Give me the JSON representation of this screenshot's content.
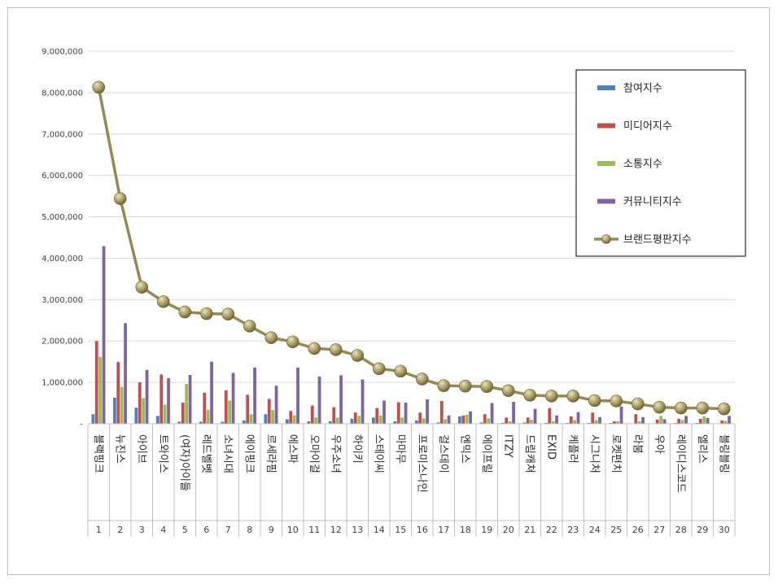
{
  "chart_data": {
    "type": "bar",
    "title": "",
    "xlabel": "",
    "ylabel": "",
    "ylim": [
      0,
      9000000
    ],
    "yticks": [
      0,
      1000000,
      2000000,
      3000000,
      4000000,
      5000000,
      6000000,
      7000000,
      8000000,
      9000000
    ],
    "ytick_labels": [
      "-",
      "1,000,000",
      "2,000,000",
      "3,000,000",
      "4,000,000",
      "5,000,000",
      "6,000,000",
      "7,000,000",
      "8,000,000",
      "9,000,000"
    ],
    "grid": true,
    "legend_position": "top-right",
    "categories": [
      "블랙핑크",
      "뉴진스",
      "아이브",
      "트와이스",
      "(여자)아이들",
      "레드벨벳",
      "소녀시대",
      "에이핑크",
      "르세라핌",
      "에스파",
      "오마이걸",
      "우주소녀",
      "하이키",
      "스테이씨",
      "마마무",
      "프로미스나인",
      "걸스데이",
      "엔믹스",
      "에이프릴",
      "ITZY",
      "드림캐쳐",
      "EXID",
      "케플러",
      "시그니처",
      "로켓펀치",
      "라붐",
      "우아",
      "레이디스코드",
      "엘리스",
      "블링블링"
    ],
    "ranks": [
      "1",
      "2",
      "3",
      "4",
      "5",
      "6",
      "7",
      "8",
      "9",
      "10",
      "11",
      "12",
      "13",
      "14",
      "15",
      "16",
      "17",
      "18",
      "19",
      "20",
      "21",
      "22",
      "23",
      "24",
      "25",
      "26",
      "27",
      "28",
      "29",
      "30"
    ],
    "series": [
      {
        "name": "참여지수",
        "kind": "bar",
        "color": "#4f81bd",
        "values": [
          230000,
          630000,
          390000,
          190000,
          50000,
          50000,
          50000,
          80000,
          230000,
          110000,
          60000,
          60000,
          120000,
          150000,
          60000,
          80000,
          30000,
          180000,
          30000,
          20000,
          30000,
          20000,
          20000,
          20000,
          20000,
          10000,
          10000,
          20000,
          20000,
          10000
        ]
      },
      {
        "name": "미디어지수",
        "kind": "bar",
        "color": "#c0504d",
        "values": [
          2000000,
          1490000,
          1000000,
          1190000,
          510000,
          750000,
          810000,
          700000,
          600000,
          310000,
          440000,
          400000,
          270000,
          380000,
          520000,
          270000,
          550000,
          200000,
          230000,
          150000,
          150000,
          380000,
          180000,
          270000,
          60000,
          230000,
          100000,
          120000,
          120000,
          80000
        ]
      },
      {
        "name": "소통지수",
        "kind": "bar",
        "color": "#9bbb59",
        "values": [
          1620000,
          890000,
          620000,
          460000,
          960000,
          340000,
          560000,
          230000,
          330000,
          200000,
          150000,
          150000,
          190000,
          200000,
          150000,
          130000,
          110000,
          220000,
          130000,
          60000,
          100000,
          60000,
          90000,
          90000,
          60000,
          60000,
          190000,
          90000,
          180000,
          70000
        ]
      },
      {
        "name": "커뮤니티지수",
        "kind": "bar",
        "color": "#8064a2",
        "values": [
          4290000,
          2430000,
          1300000,
          1100000,
          1180000,
          1500000,
          1230000,
          1360000,
          920000,
          1360000,
          1140000,
          1170000,
          1070000,
          560000,
          510000,
          590000,
          200000,
          300000,
          500000,
          530000,
          360000,
          200000,
          280000,
          160000,
          420000,
          160000,
          110000,
          190000,
          140000,
          190000
        ]
      },
      {
        "name": "브랜드평판지수",
        "kind": "line",
        "color": "#948a54",
        "marker": "circle",
        "values": [
          8130000,
          5440000,
          3300000,
          2950000,
          2700000,
          2660000,
          2650000,
          2360000,
          2080000,
          1980000,
          1820000,
          1790000,
          1650000,
          1330000,
          1270000,
          1080000,
          920000,
          910000,
          900000,
          800000,
          690000,
          670000,
          670000,
          560000,
          550000,
          480000,
          400000,
          380000,
          380000,
          360000
        ]
      }
    ]
  }
}
